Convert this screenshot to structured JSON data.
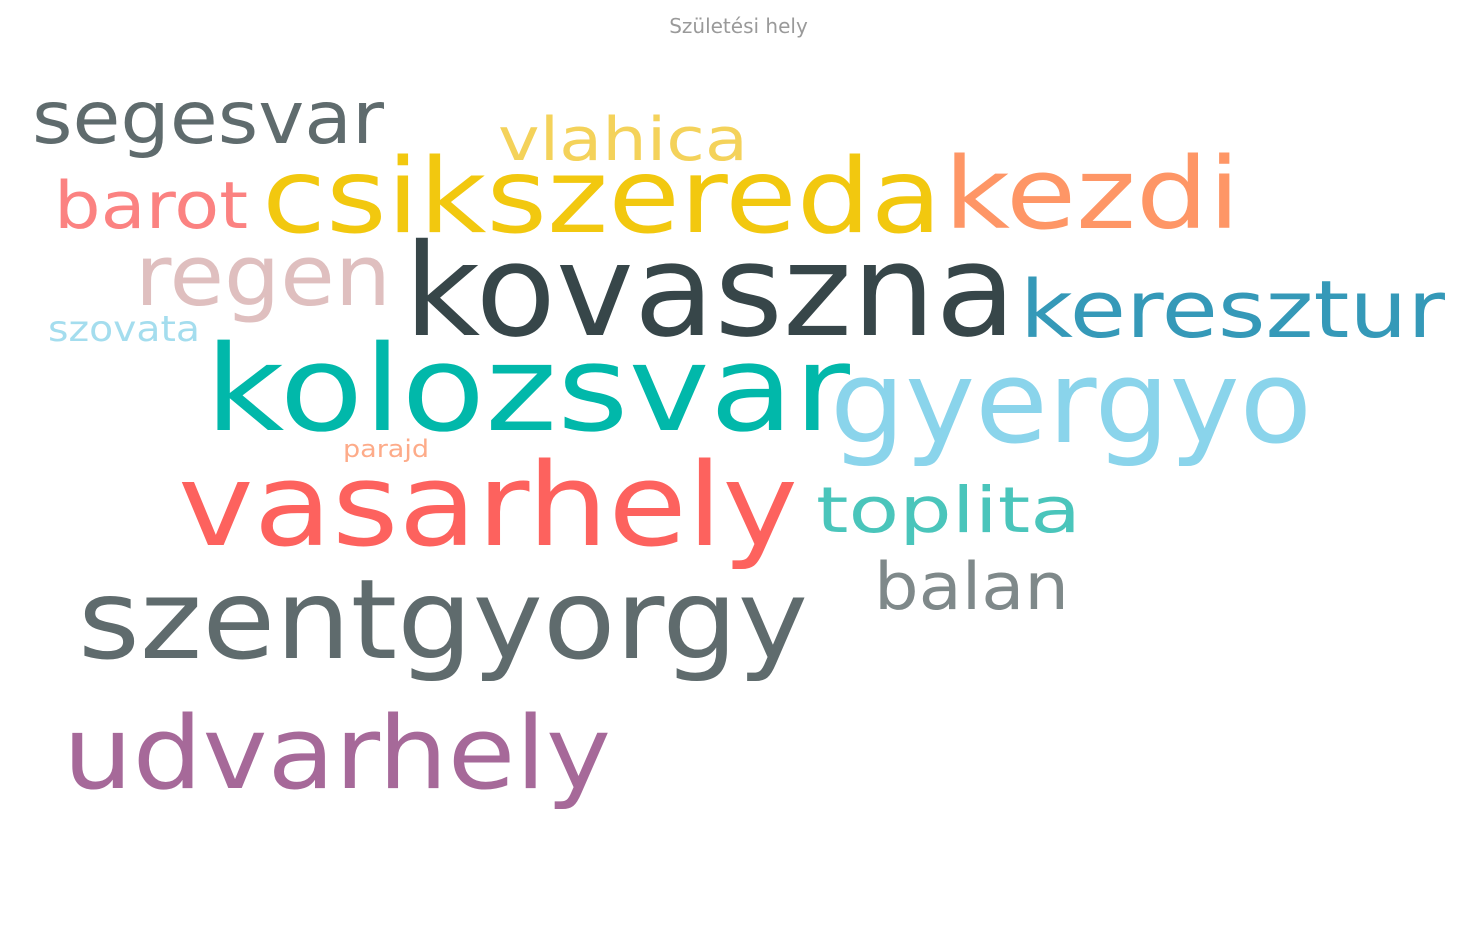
{
  "chart_data": {
    "type": "wordcloud",
    "title": "Születési hely",
    "words": [
      {
        "text": "vasarhely",
        "weight": 100,
        "color": "#FD625E"
      },
      {
        "text": "kovaszna",
        "weight": 97,
        "color": "#374649"
      },
      {
        "text": "kolozsvar",
        "weight": 93,
        "color": "#01B8AA"
      },
      {
        "text": "csikszereda",
        "weight": 90,
        "color": "#F2C80F"
      },
      {
        "text": "gyergyo",
        "weight": 86,
        "color": "#8AD4EB"
      },
      {
        "text": "szentgyorgy",
        "weight": 82,
        "color": "#5F6B6D"
      },
      {
        "text": "udvarhely",
        "weight": 80,
        "color": "#A66999"
      },
      {
        "text": "kezdi",
        "weight": 77,
        "color": "#FE9666"
      },
      {
        "text": "keresztur",
        "weight": 64,
        "color": "#3599B8"
      },
      {
        "text": "toplita",
        "weight": 59,
        "color": "#4AC5BB"
      },
      {
        "text": "segesvar",
        "weight": 59,
        "color": "#5F6B6D"
      },
      {
        "text": "regen",
        "weight": 59,
        "color": "#DFBFBF"
      },
      {
        "text": "vlahica",
        "weight": 54,
        "color": "#F4D25A"
      },
      {
        "text": "barot",
        "weight": 53,
        "color": "#FB8281"
      },
      {
        "text": "balan",
        "weight": 52,
        "color": "#7F898A"
      },
      {
        "text": "szovata",
        "weight": 30,
        "color": "#A4DDEE"
      },
      {
        "text": "parajd",
        "weight": 24,
        "color": "#FDAB89"
      }
    ]
  }
}
